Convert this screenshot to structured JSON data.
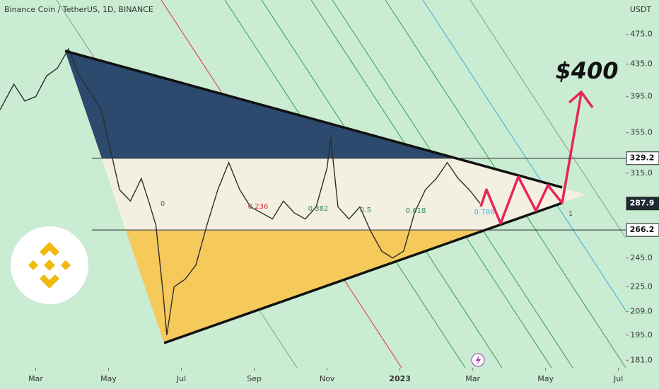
{
  "chart_data": {
    "type": "line",
    "title": "Binance Coin / TetherUS, 1D, BINANCE",
    "y_unit": "USDT",
    "annotation": "$400",
    "log_scale": true,
    "color": "#2d2d2d",
    "x": [
      -0.98,
      -0.6,
      -0.3,
      0,
      0.3,
      0.6,
      0.9,
      1.2,
      1.5,
      1.8,
      2.1,
      2.3,
      2.6,
      2.9,
      3.1,
      3.3,
      3.5,
      3.6,
      3.8,
      4.1,
      4.4,
      4.7,
      5.0,
      5.3,
      5.6,
      5.9,
      6.2,
      6.5,
      6.8,
      7.1,
      7.4,
      7.7,
      8.0,
      8.1,
      8.3,
      8.6,
      8.9,
      9.2,
      9.5,
      9.8,
      10.1,
      10.4,
      10.7,
      11.0,
      11.3,
      11.6,
      11.9,
      12.2
    ],
    "values": [
      380,
      410,
      390,
      395,
      420,
      430,
      455,
      420,
      400,
      380,
      330,
      300,
      290,
      310,
      290,
      270,
      220,
      195,
      225,
      230,
      240,
      270,
      300,
      325,
      300,
      285,
      280,
      275,
      290,
      280,
      275,
      285,
      320,
      350,
      285,
      275,
      285,
      265,
      250,
      245,
      250,
      280,
      300,
      310,
      325,
      310,
      300,
      288
    ],
    "xlim": [
      -0.98,
      16.2
    ],
    "xticks": [
      {
        "value": 0,
        "label": "Mar"
      },
      {
        "value": 2,
        "label": "May"
      },
      {
        "value": 4,
        "label": "Jul"
      },
      {
        "value": 6,
        "label": "Sep"
      },
      {
        "value": 8,
        "label": "Nov"
      },
      {
        "value": 10,
        "label": "2023"
      },
      {
        "value": 12,
        "label": "Mar"
      },
      {
        "value": 14,
        "label": "May"
      },
      {
        "value": 16,
        "label": "Jul"
      }
    ],
    "ylim": [
      177,
      526
    ],
    "yticks": [
      {
        "value": 475,
        "label": "475.0"
      },
      {
        "value": 435,
        "label": "435.0"
      },
      {
        "value": 395,
        "label": "395.0"
      },
      {
        "value": 355,
        "label": "355.0"
      },
      {
        "value": 315,
        "label": "315.0"
      },
      {
        "value": 245,
        "label": "245.0"
      },
      {
        "value": 225,
        "label": "225.0"
      },
      {
        "value": 209,
        "label": "209.0"
      },
      {
        "value": 195,
        "label": "195.0"
      },
      {
        "value": 181,
        "label": "181.0"
      }
    ],
    "price_labels": [
      {
        "value": 329.2,
        "line": true
      },
      {
        "value": 287.9,
        "line": false
      },
      {
        "value": 266.2,
        "line": true
      }
    ],
    "fib_labels": [
      0,
      0.236,
      0.382,
      0.5,
      0.618,
      0.786,
      1
    ]
  }
}
